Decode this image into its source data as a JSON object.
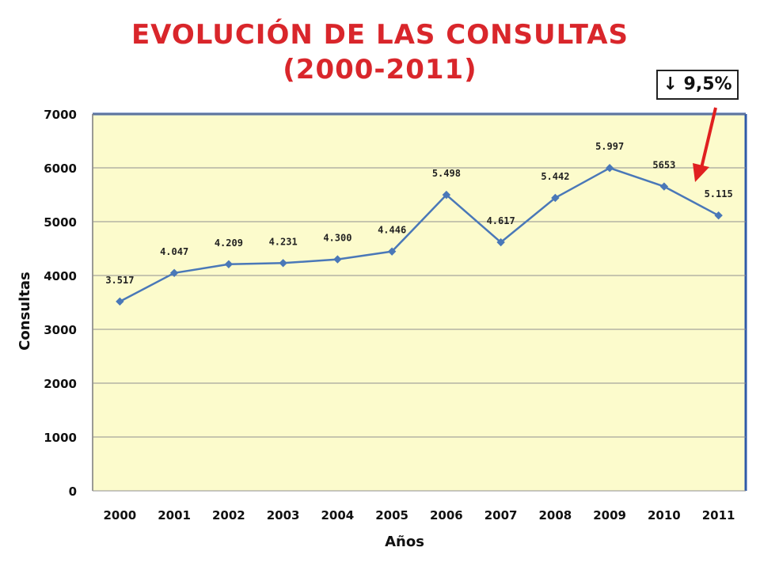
{
  "title": {
    "line1": "EVOLUCIÓN DE LAS CONSULTAS",
    "line2": "(2000-2011)"
  },
  "callout": {
    "arrow_glyph": "↓",
    "text": "9,5%",
    "color": "#e02020"
  },
  "chart_data": {
    "type": "line",
    "categories": [
      "2000",
      "2001",
      "2002",
      "2003",
      "2004",
      "2005",
      "2006",
      "2007",
      "2008",
      "2009",
      "2010",
      "2011"
    ],
    "series": [
      {
        "values": [
          3517,
          4047,
          4209,
          4231,
          4300,
          4446,
          5498,
          4617,
          5442,
          5997,
          5653,
          5115
        ],
        "labels": [
          "3.517",
          "4.047",
          "4.209",
          "4.231",
          "4.300",
          "4.446",
          "5.498",
          "4.617",
          "5.442",
          "5.997",
          "5653",
          "5.115"
        ],
        "color": "#4a78b8"
      }
    ],
    "xlabel": "Años",
    "ylabel": "Consultas",
    "ylim": [
      0,
      7000
    ],
    "yticks": [
      0,
      1000,
      2000,
      3000,
      4000,
      5000,
      6000,
      7000
    ],
    "grid": true,
    "plot_background": "#fcfbcc"
  }
}
